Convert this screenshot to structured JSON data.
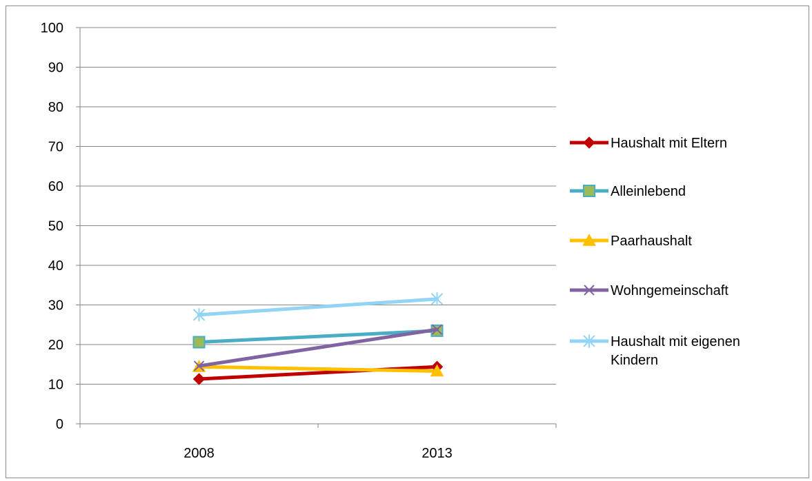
{
  "chart_data": {
    "type": "line",
    "title": "",
    "xlabel": "",
    "ylabel": "",
    "categories": [
      "2008",
      "2013"
    ],
    "ylim": [
      0,
      100
    ],
    "yticks": [
      "0",
      "10",
      "20",
      "30",
      "40",
      "50",
      "60",
      "70",
      "80",
      "90",
      "100"
    ],
    "grid": true,
    "legend_position": "right",
    "series": [
      {
        "name": "Haushalt mit Eltern",
        "values": [
          11.3,
          14.4
        ],
        "color": "#c00000",
        "marker": "diamond"
      },
      {
        "name": "Alleinlebend",
        "values": [
          20.6,
          23.5
        ],
        "color": "#4bacc6",
        "marker": "square"
      },
      {
        "name": "Paarhaushalt",
        "values": [
          14.4,
          13.3
        ],
        "color": "#ffc000",
        "marker": "triangle"
      },
      {
        "name": "Wohngemeinschaft",
        "values": [
          14.6,
          23.8
        ],
        "color": "#8064a2",
        "marker": "x"
      },
      {
        "name": "Haushalt mit eigenen Kindern",
        "values": [
          27.5,
          31.5
        ],
        "color": "#92d4f5",
        "marker": "star"
      }
    ]
  }
}
